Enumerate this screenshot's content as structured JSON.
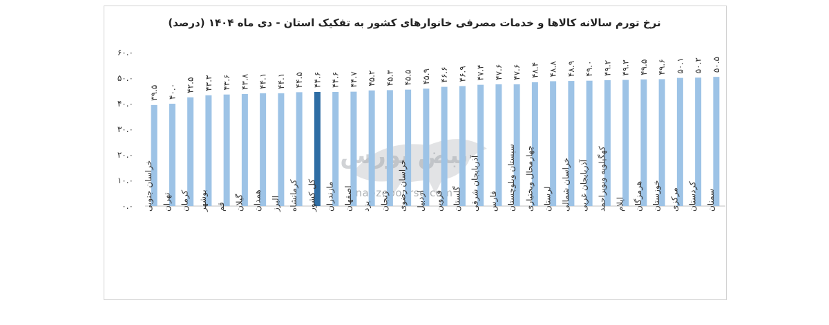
{
  "chart_data": {
    "type": "bar",
    "title": "نرخ تورم سالانه کالاها و خدمات مصرفی خانوارهای کشور به تفکیک استان - دی ماه ۱۴۰۴ (درصد)",
    "ylim": [
      0,
      60
    ],
    "yticks": [
      "۰.۰",
      "۱۰.۰",
      "۲۰.۰",
      "۳۰.۰",
      "۴۰.۰",
      "۵۰.۰",
      "۶۰.۰"
    ],
    "ytick_values": [
      0,
      10,
      20,
      30,
      40,
      50,
      60
    ],
    "grid": false,
    "categories": [
      "خراسان جنوبی",
      "تهران",
      "کرمان",
      "بوشهر",
      "قم",
      "گیلان",
      "همدان",
      "البرز",
      "کرمانشاه",
      "کل کشور",
      "مازندران",
      "اصفهان",
      "یزد",
      "زنجان",
      "خراسان رضوی",
      "اردبیل",
      "قزوین",
      "گلستان",
      "آذربایجان شرقی",
      "فارس",
      "سیستان وبلوچستان",
      "چهارمحال وبختیاری",
      "لرستان",
      "خراسان شمالی",
      "آذربایجان غربی",
      "کهگیلویه وبویراحمد",
      "ایلام",
      "هرمزگان",
      "خوزستان",
      "مرکزی",
      "کردستان",
      "سمنان"
    ],
    "values": [
      39.5,
      40.0,
      42.5,
      43.3,
      43.6,
      43.8,
      44.1,
      44.1,
      44.5,
      44.6,
      44.6,
      44.7,
      45.2,
      45.3,
      45.5,
      45.9,
      46.6,
      46.9,
      47.4,
      47.6,
      47.6,
      48.4,
      48.8,
      48.9,
      49.0,
      49.2,
      49.3,
      49.5,
      49.6,
      50.1,
      50.2,
      50.5
    ],
    "value_labels": [
      "۳۹.۵",
      "۴۰.۰",
      "۴۲.۵",
      "۴۳.۳",
      "۴۳.۶",
      "۴۳.۸",
      "۴۴.۱",
      "۴۴.۱",
      "۴۴.۵",
      "۴۴.۶",
      "۴۴.۶",
      "۴۴.۷",
      "۴۵.۲",
      "۴۵.۳",
      "۴۵.۵",
      "۴۵.۹",
      "۴۶.۶",
      "۴۶.۹",
      "۴۷.۴",
      "۴۷.۶",
      "۴۷.۶",
      "۴۸.۴",
      "۴۸.۸",
      "۴۸.۹",
      "۴۹.۰",
      "۴۹.۲",
      "۴۹.۳",
      "۴۹.۵",
      "۴۹.۶",
      "۵۰.۱",
      "۵۰.۲",
      "۵۰.۵"
    ],
    "highlight_category": "کل کشور",
    "colors": {
      "bar": "#9dc3e6",
      "highlight": "#2e6da4",
      "axis": "#bfbfbf",
      "text": "#333333"
    }
  },
  "watermark": {
    "name": "نبض بورس",
    "url_text": "nabzebourse.com"
  }
}
